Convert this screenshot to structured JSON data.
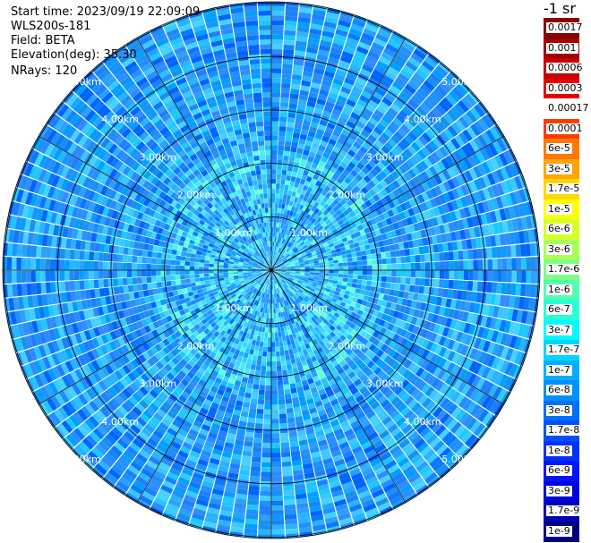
{
  "info": {
    "start_time": "Start time: 2023/09/19 22:09:09",
    "instrument": "WLS200s-181",
    "field": "Field: BETA",
    "elevation": "Elevation(deg): 35.30",
    "nrays": "NRays: 120"
  },
  "colorbar": {
    "unit": "-1 sr",
    "labels": [
      "0.0017",
      "0.001",
      "0.0006",
      "0.0003",
      "0.00017",
      "0.0001",
      "6e-5",
      "3e-5",
      "1.7e-5",
      "1e-5",
      "6e-6",
      "3e-6",
      "1.7e-6",
      "1e-6",
      "6e-7",
      "3e-7",
      "1.7e-7",
      "1e-7",
      "6e-8",
      "3e-8",
      "1.7e-8",
      "1e-8",
      "6e-9",
      "3e-9",
      "1.7e-9",
      "1e-9"
    ],
    "colors": [
      "#8b0000",
      "#a00000",
      "#c80000",
      "#e60000",
      "#ffffff",
      "#ff3c00",
      "#ff7800",
      "#ffa500",
      "#ffd700",
      "#ffff00",
      "#d4ff2a",
      "#a8ff57",
      "#7cff83",
      "#50ffb0",
      "#28ffd8",
      "#00fbff",
      "#00d4ff",
      "#00b0ff",
      "#0090ff",
      "#0070ff",
      "#0050ff",
      "#0032ff",
      "#0014ff",
      "#0000e6",
      "#0000b4",
      "#000080"
    ]
  },
  "chart_data": {
    "type": "heatmap",
    "projection": "polar (PPI scan)",
    "field": "BETA",
    "elevation_deg": 35.3,
    "nrays": 120,
    "range_rings_km": [
      1.0,
      2.0,
      3.0,
      4.0,
      5.0
    ],
    "ring_labels": [
      "1.00km",
      "2.00km",
      "3.00km",
      "4.00km",
      "5.00km"
    ],
    "max_range_km": 5.0,
    "spokes_deg": [
      0,
      30,
      60,
      90,
      120,
      150,
      180,
      210,
      240,
      270,
      300,
      330
    ],
    "value_range": [
      "1e-9",
      "0.0017"
    ],
    "dominant_values": [
      "1.7e-8",
      "1e-7",
      "3e-7"
    ],
    "color_scale": "log, discrete"
  }
}
